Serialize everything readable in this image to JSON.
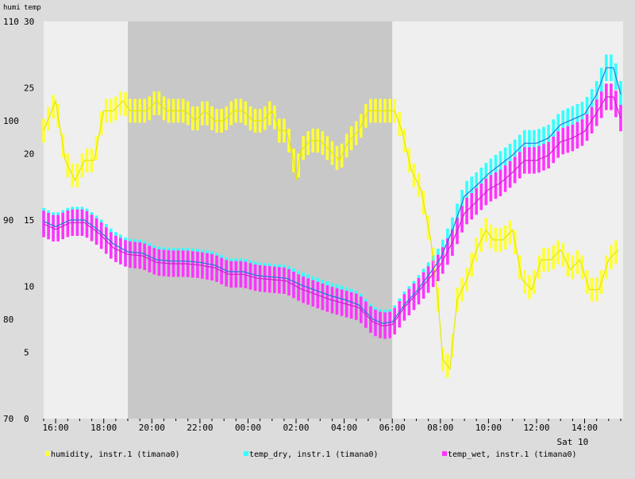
{
  "chart_data": {
    "type": "line",
    "axis_titles": {
      "left_humidity": "humi",
      "left_temp": "temp"
    },
    "humidity_axis": {
      "ylim": [
        70,
        110
      ],
      "ticks": [
        "70",
        "80",
        "90",
        "100",
        "110"
      ]
    },
    "temp_axis": {
      "ylim": [
        0,
        30
      ],
      "ticks": [
        "0",
        "5",
        "10",
        "15",
        "20",
        "25",
        "30"
      ]
    },
    "x_axis": {
      "start_hour": 15.5,
      "end_hour": 39.6,
      "ticks": [
        "16:00",
        "18:00",
        "20:00",
        "22:00",
        "00:00",
        "02:00",
        "04:00",
        "06:00",
        "08:00",
        "10:00",
        "12:00",
        "14:00"
      ],
      "tick_hours": [
        16,
        18,
        20,
        22,
        24,
        26,
        28,
        30,
        32,
        34,
        36,
        38
      ],
      "date_label": "Sat 10",
      "date_label_hour": 37.5
    },
    "night_shade": {
      "from_hour": 19.0,
      "to_hour": 30.0,
      "color": "#c8c8c8"
    },
    "background": {
      "plot": "#efefef",
      "page": "#dcdcdc"
    },
    "series": [
      {
        "name": "humidity, instr.1 (timana0)",
        "axis": "humidity",
        "color": "#ffff33",
        "err": 1.2,
        "points": [
          [
            15.5,
            99
          ],
          [
            16.0,
            102
          ],
          [
            16.4,
            96
          ],
          [
            16.8,
            94
          ],
          [
            17.2,
            96
          ],
          [
            17.6,
            96
          ],
          [
            18.0,
            101
          ],
          [
            18.4,
            101
          ],
          [
            18.8,
            102
          ],
          [
            19.1,
            101
          ],
          [
            19.4,
            101
          ],
          [
            19.8,
            101
          ],
          [
            20.2,
            102
          ],
          [
            20.6,
            101
          ],
          [
            21.0,
            101
          ],
          [
            21.4,
            101
          ],
          [
            21.8,
            100
          ],
          [
            22.2,
            101
          ],
          [
            22.6,
            100
          ],
          [
            23.0,
            100
          ],
          [
            23.4,
            101
          ],
          [
            23.8,
            101
          ],
          [
            24.2,
            100
          ],
          [
            24.6,
            100
          ],
          [
            25.0,
            101
          ],
          [
            25.3,
            99
          ],
          [
            25.6,
            99
          ],
          [
            25.9,
            96
          ],
          [
            26.0,
            94
          ],
          [
            26.2,
            97
          ],
          [
            26.6,
            98
          ],
          [
            27.0,
            98
          ],
          [
            27.4,
            97
          ],
          [
            27.8,
            96
          ],
          [
            28.2,
            98
          ],
          [
            28.6,
            99
          ],
          [
            29.0,
            101
          ],
          [
            29.4,
            101
          ],
          [
            29.8,
            101
          ],
          [
            30.1,
            101
          ],
          [
            30.4,
            99
          ],
          [
            30.8,
            95
          ],
          [
            31.2,
            93
          ],
          [
            31.6,
            88
          ],
          [
            31.9,
            82
          ],
          [
            32.1,
            76
          ],
          [
            32.4,
            75
          ],
          [
            32.7,
            82
          ],
          [
            33.1,
            84
          ],
          [
            33.5,
            87
          ],
          [
            33.9,
            89
          ],
          [
            34.2,
            88
          ],
          [
            34.6,
            88
          ],
          [
            35.0,
            89
          ],
          [
            35.4,
            84
          ],
          [
            35.8,
            83
          ],
          [
            36.2,
            86
          ],
          [
            36.6,
            86
          ],
          [
            37.0,
            87
          ],
          [
            37.4,
            85
          ],
          [
            37.8,
            86
          ],
          [
            38.2,
            83
          ],
          [
            38.6,
            83
          ],
          [
            39.0,
            86
          ],
          [
            39.4,
            87
          ]
        ]
      },
      {
        "name": "temp_dry, instr.1 (timana0)",
        "axis": "temp",
        "color": "#33ffff",
        "err": 1.0,
        "points": [
          [
            15.5,
            14.9
          ],
          [
            16.0,
            14.5
          ],
          [
            16.6,
            15.0
          ],
          [
            17.2,
            15.0
          ],
          [
            17.8,
            14.2
          ],
          [
            18.4,
            13.2
          ],
          [
            19.0,
            12.6
          ],
          [
            19.6,
            12.5
          ],
          [
            20.2,
            12.0
          ],
          [
            20.8,
            11.9
          ],
          [
            21.4,
            11.9
          ],
          [
            22.0,
            11.8
          ],
          [
            22.6,
            11.6
          ],
          [
            23.2,
            11.1
          ],
          [
            23.8,
            11.1
          ],
          [
            24.4,
            10.8
          ],
          [
            25.0,
            10.7
          ],
          [
            25.6,
            10.6
          ],
          [
            26.2,
            10.1
          ],
          [
            26.8,
            9.7
          ],
          [
            27.4,
            9.3
          ],
          [
            28.0,
            9.0
          ],
          [
            28.6,
            8.6
          ],
          [
            29.2,
            7.5
          ],
          [
            29.6,
            7.2
          ],
          [
            30.0,
            7.3
          ],
          [
            30.5,
            8.6
          ],
          [
            31.0,
            9.6
          ],
          [
            31.5,
            10.8
          ],
          [
            32.0,
            12.1
          ],
          [
            32.5,
            14.2
          ],
          [
            33.0,
            16.8
          ],
          [
            33.5,
            17.6
          ],
          [
            34.0,
            18.5
          ],
          [
            34.5,
            19.2
          ],
          [
            35.0,
            19.9
          ],
          [
            35.5,
            20.8
          ],
          [
            36.0,
            20.8
          ],
          [
            36.5,
            21.2
          ],
          [
            37.0,
            22.2
          ],
          [
            37.5,
            22.6
          ],
          [
            38.0,
            23.0
          ],
          [
            38.5,
            24.5
          ],
          [
            38.9,
            26.5
          ],
          [
            39.2,
            26.5
          ],
          [
            39.5,
            24.5
          ]
        ]
      },
      {
        "name": "temp_wet, instr.1 (timana0)",
        "axis": "temp",
        "color": "#ff33ff",
        "err": 1.0,
        "points": [
          [
            15.5,
            14.7
          ],
          [
            16.0,
            14.3
          ],
          [
            16.6,
            14.8
          ],
          [
            17.2,
            14.8
          ],
          [
            17.8,
            14.0
          ],
          [
            18.4,
            12.9
          ],
          [
            19.0,
            12.4
          ],
          [
            19.6,
            12.3
          ],
          [
            20.2,
            11.8
          ],
          [
            20.8,
            11.7
          ],
          [
            21.4,
            11.7
          ],
          [
            22.0,
            11.6
          ],
          [
            22.6,
            11.4
          ],
          [
            23.2,
            10.9
          ],
          [
            23.8,
            10.9
          ],
          [
            24.4,
            10.6
          ],
          [
            25.0,
            10.5
          ],
          [
            25.6,
            10.4
          ],
          [
            26.2,
            9.8
          ],
          [
            26.8,
            9.4
          ],
          [
            27.4,
            9.0
          ],
          [
            28.0,
            8.7
          ],
          [
            28.6,
            8.4
          ],
          [
            29.2,
            7.3
          ],
          [
            29.6,
            7.0
          ],
          [
            30.0,
            7.1
          ],
          [
            30.5,
            8.4
          ],
          [
            31.0,
            9.4
          ],
          [
            31.5,
            10.5
          ],
          [
            32.0,
            11.6
          ],
          [
            32.5,
            13.3
          ],
          [
            33.0,
            15.5
          ],
          [
            33.5,
            16.4
          ],
          [
            34.0,
            17.3
          ],
          [
            34.5,
            17.8
          ],
          [
            35.0,
            18.6
          ],
          [
            35.5,
            19.5
          ],
          [
            36.0,
            19.5
          ],
          [
            36.5,
            19.9
          ],
          [
            37.0,
            20.9
          ],
          [
            37.5,
            21.2
          ],
          [
            38.0,
            21.7
          ],
          [
            38.5,
            23.1
          ],
          [
            38.9,
            24.3
          ],
          [
            39.2,
            24.3
          ],
          [
            39.5,
            22.7
          ]
        ]
      }
    ],
    "legend_placement": "bottom",
    "grid": false
  }
}
